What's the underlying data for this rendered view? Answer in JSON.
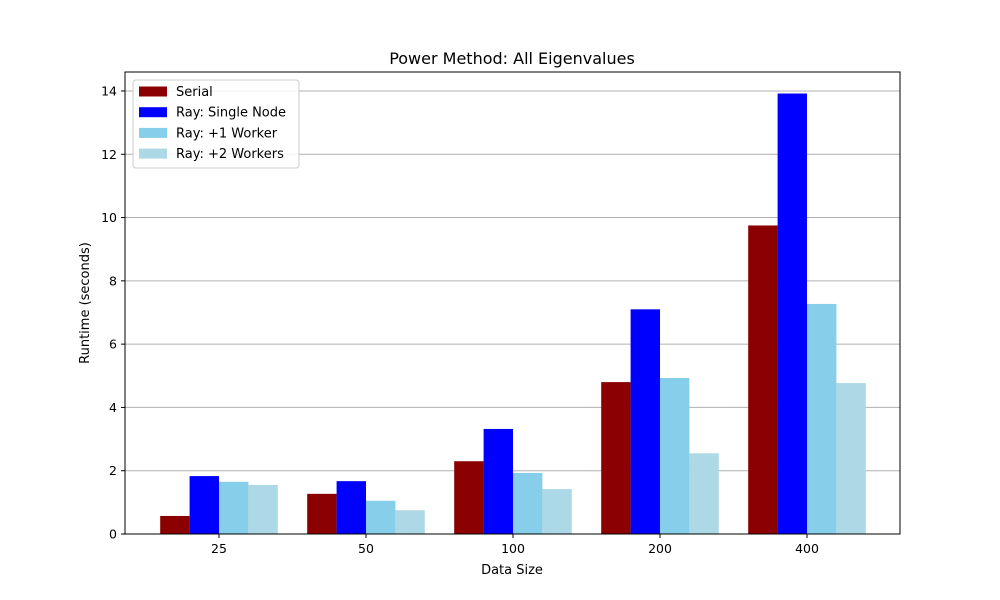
{
  "chart_data": {
    "type": "bar",
    "title": "Power Method: All Eigenvalues",
    "xlabel": "Data Size",
    "ylabel": "Runtime (seconds)",
    "categories": [
      "25",
      "50",
      "100",
      "200",
      "400"
    ],
    "ylim": [
      0,
      14.6
    ],
    "yticks": [
      0,
      2,
      4,
      6,
      8,
      10,
      12,
      14
    ],
    "grid": "y",
    "legend_position": "top-left",
    "series": [
      {
        "name": "Serial",
        "color": "#8b0000",
        "values": [
          0.57,
          1.27,
          2.3,
          4.8,
          9.75
        ]
      },
      {
        "name": "Ray: Single Node",
        "color": "#0000ff",
        "values": [
          1.83,
          1.67,
          3.32,
          7.1,
          13.92
        ]
      },
      {
        "name": "Ray: +1 Worker",
        "color": "#87ceeb",
        "values": [
          1.65,
          1.05,
          1.93,
          4.93,
          7.27
        ]
      },
      {
        "name": "Ray: +2 Workers",
        "color": "#add8e6",
        "values": [
          1.55,
          0.75,
          1.42,
          2.55,
          4.77
        ]
      }
    ]
  }
}
